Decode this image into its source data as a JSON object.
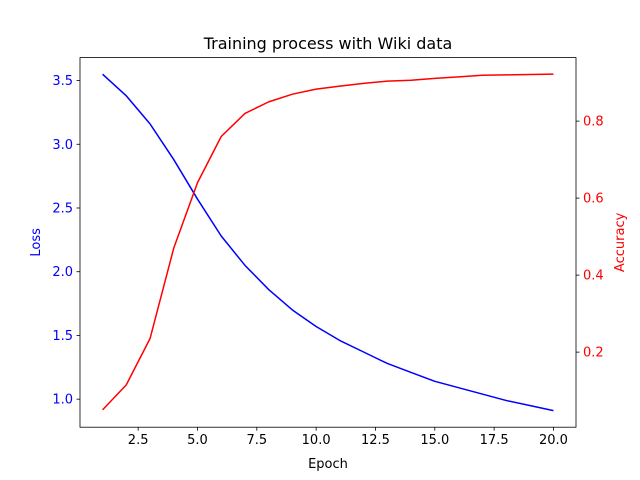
{
  "chart_data": {
    "type": "line",
    "title": "Training process with Wiki data",
    "xlabel": "Epoch",
    "ylabel_left": "Loss",
    "ylabel_right": "Accuracy",
    "xlim": [
      0.05,
      20.95
    ],
    "ylim_left": [
      0.78,
      3.68
    ],
    "ylim_right": [
      0.005,
      0.965
    ],
    "x_ticks": [
      2.5,
      5.0,
      7.5,
      10.0,
      12.5,
      15.0,
      17.5,
      20.0
    ],
    "x_tick_labels": [
      "2.5",
      "5.0",
      "7.5",
      "10.0",
      "12.5",
      "15.0",
      "17.5",
      "20.0"
    ],
    "y_left_ticks": [
      1.0,
      1.5,
      2.0,
      2.5,
      3.0,
      3.5
    ],
    "y_left_tick_labels": [
      "1.0",
      "1.5",
      "2.0",
      "2.5",
      "3.0",
      "3.5"
    ],
    "y_right_ticks": [
      0.2,
      0.4,
      0.6,
      0.8
    ],
    "y_right_tick_labels": [
      "0.2",
      "0.4",
      "0.6",
      "0.8"
    ],
    "grid": false,
    "x": [
      1,
      2,
      3,
      4,
      5,
      6,
      7,
      8,
      9,
      10,
      11,
      12,
      13,
      14,
      15,
      16,
      17,
      18,
      19,
      20
    ],
    "series": [
      {
        "axis": "left",
        "color": "#0000ff",
        "values": [
          3.55,
          3.38,
          3.16,
          2.88,
          2.57,
          2.28,
          2.05,
          1.86,
          1.7,
          1.57,
          1.46,
          1.37,
          1.28,
          1.21,
          1.14,
          1.09,
          1.04,
          0.99,
          0.95,
          0.91
        ]
      },
      {
        "axis": "right",
        "color": "#ff0000",
        "values": [
          0.05,
          0.115,
          0.235,
          0.47,
          0.64,
          0.76,
          0.82,
          0.85,
          0.87,
          0.883,
          0.891,
          0.898,
          0.904,
          0.906,
          0.911,
          0.915,
          0.919,
          0.92,
          0.921,
          0.922
        ]
      }
    ],
    "colors": {
      "axes": "#000000",
      "left_axis": "#0000ff",
      "right_axis": "#ff0000"
    }
  }
}
